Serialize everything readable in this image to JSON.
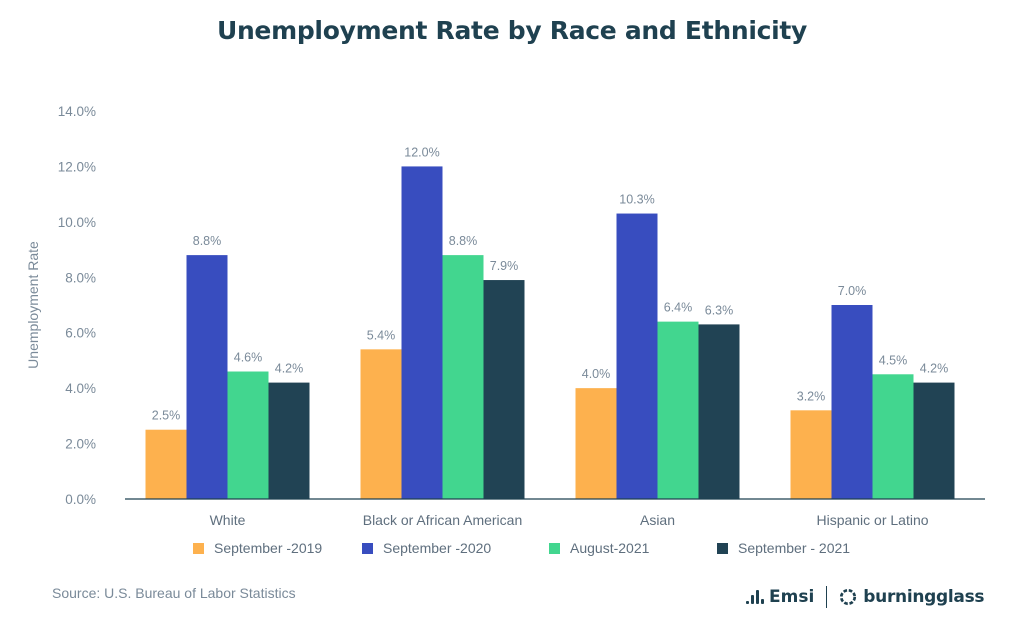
{
  "chart_data": {
    "type": "bar",
    "title": "Unemployment Rate by Race and Ethnicity",
    "xlabel": "",
    "ylabel": "Unemployment Rate",
    "ylim": [
      0,
      14
    ],
    "yticks": [
      "0.0%",
      "2.0%",
      "4.0%",
      "6.0%",
      "8.0%",
      "10.0%",
      "12.0%",
      "14.0%"
    ],
    "ytick_values": [
      0,
      2,
      4,
      6,
      8,
      10,
      12,
      14
    ],
    "grid": false,
    "legend_position": "bottom",
    "categories": [
      "White",
      "Black or African American",
      "Asian",
      "Hispanic or Latino"
    ],
    "series": [
      {
        "name": "September -2019",
        "color": "#fdb14e",
        "values": [
          2.5,
          5.4,
          4.0,
          3.2
        ],
        "labels": [
          "2.5%",
          "5.4%",
          "4.0%",
          "3.2%"
        ]
      },
      {
        "name": "September -2020",
        "color": "#384dbf",
        "values": [
          8.8,
          12.0,
          10.3,
          7.0
        ],
        "labels": [
          "8.8%",
          "12.0%",
          "10.3%",
          "7.0%"
        ]
      },
      {
        "name": "August-2021",
        "color": "#42d68f",
        "values": [
          4.6,
          8.8,
          6.4,
          4.5
        ],
        "labels": [
          "4.6%",
          "8.8%",
          "6.4%",
          "4.5%"
        ]
      },
      {
        "name": "September - 2021",
        "color": "#214354",
        "values": [
          4.2,
          7.9,
          6.3,
          4.2
        ],
        "labels": [
          "4.2%",
          "7.9%",
          "6.3%",
          "4.2%"
        ]
      }
    ]
  },
  "footer": {
    "source": "Source: U.S. Bureau of Labor Statistics",
    "logo_emsi": "Emsi",
    "logo_burningglass": "burningglass"
  },
  "colors": {
    "title": "#1f4150",
    "axis": "#1f4150",
    "tick_text": "#7a8a99"
  }
}
